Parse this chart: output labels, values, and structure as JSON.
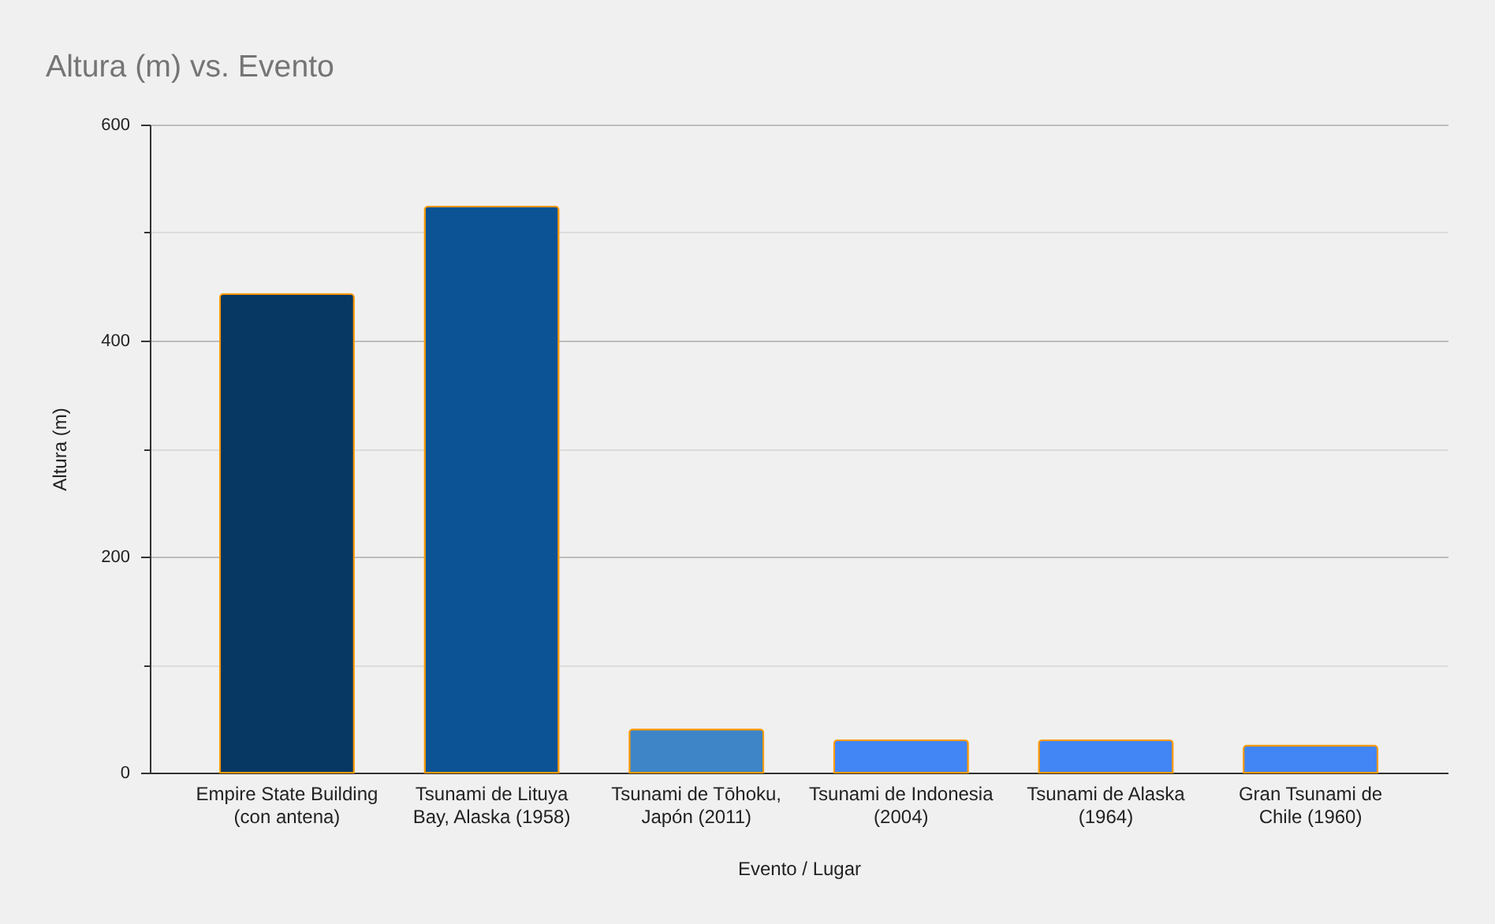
{
  "chart_data": {
    "type": "bar",
    "title": "Altura (m) vs. Evento",
    "xlabel": "Evento / Lugar",
    "ylabel": "Altura (m)",
    "categories": [
      "Empire State Building (con antena)",
      "Tsunami de Lituya Bay, Alaska (1958)",
      "Tsunami de Tōhoku, Japón (2011)",
      "Tsunami de Indonesia (2004)",
      "Tsunami de Alaska (1964)",
      "Gran Tsunami de Chile (1960)"
    ],
    "values": [
      443,
      524,
      40,
      30,
      30,
      25
    ],
    "colors": [
      "#073763",
      "#0b5394",
      "#3d85c6",
      "#4285f4",
      "#4285f4",
      "#4285f4"
    ],
    "ylim": [
      0,
      600
    ],
    "yticks": [
      0,
      {
        "value": 100,
        "label": null
      },
      200,
      {
        "value": 300,
        "label": null
      },
      400,
      {
        "value": 500,
        "label": null
      },
      600
    ],
    "grid": true
  }
}
